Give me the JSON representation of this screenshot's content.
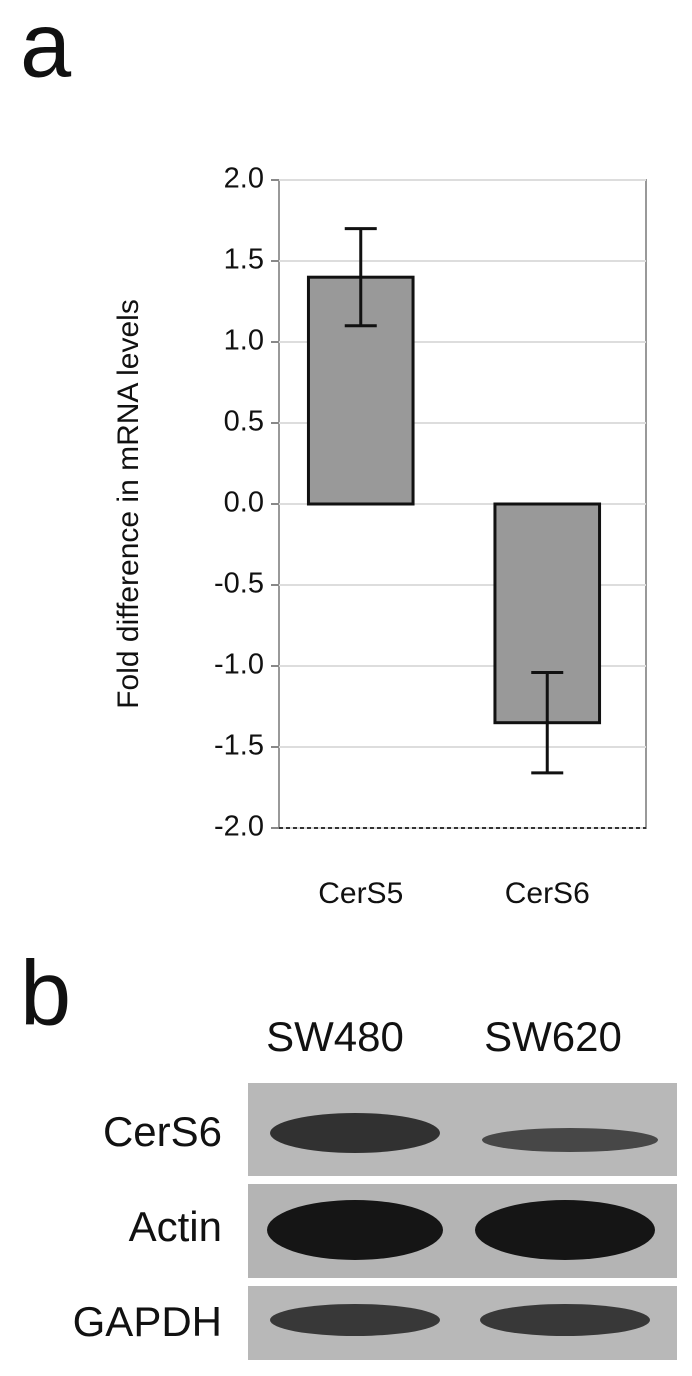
{
  "panel_labels": [
    "a",
    "b"
  ],
  "chart_data": {
    "type": "bar",
    "y_label": "Fold difference in mRNA levels",
    "categories": [
      "CerS5",
      "CerS6"
    ],
    "values": [
      1.4,
      -1.35
    ],
    "errors": [
      0.3,
      0.31
    ],
    "color": "#999999",
    "ylim": [
      -2,
      2
    ],
    "yticks": [
      {
        "value": 2,
        "label": "2.0"
      },
      {
        "value": 1.5,
        "label": "1.5"
      },
      {
        "value": 1,
        "label": "1.0"
      },
      {
        "value": 0.5,
        "label": "0.5"
      },
      {
        "value": 0,
        "label": "0.0"
      },
      {
        "value": -0.5,
        "label": "-0.5"
      },
      {
        "value": -1,
        "label": "-1.0"
      },
      {
        "value": -1.5,
        "label": "-1.5"
      },
      {
        "value": -2,
        "label": "-2.0"
      }
    ],
    "grid": true
  },
  "blot": {
    "columns": [
      "SW480",
      "SW620"
    ],
    "rows": [
      "CerS6",
      "Actin",
      "GAPDH"
    ]
  }
}
